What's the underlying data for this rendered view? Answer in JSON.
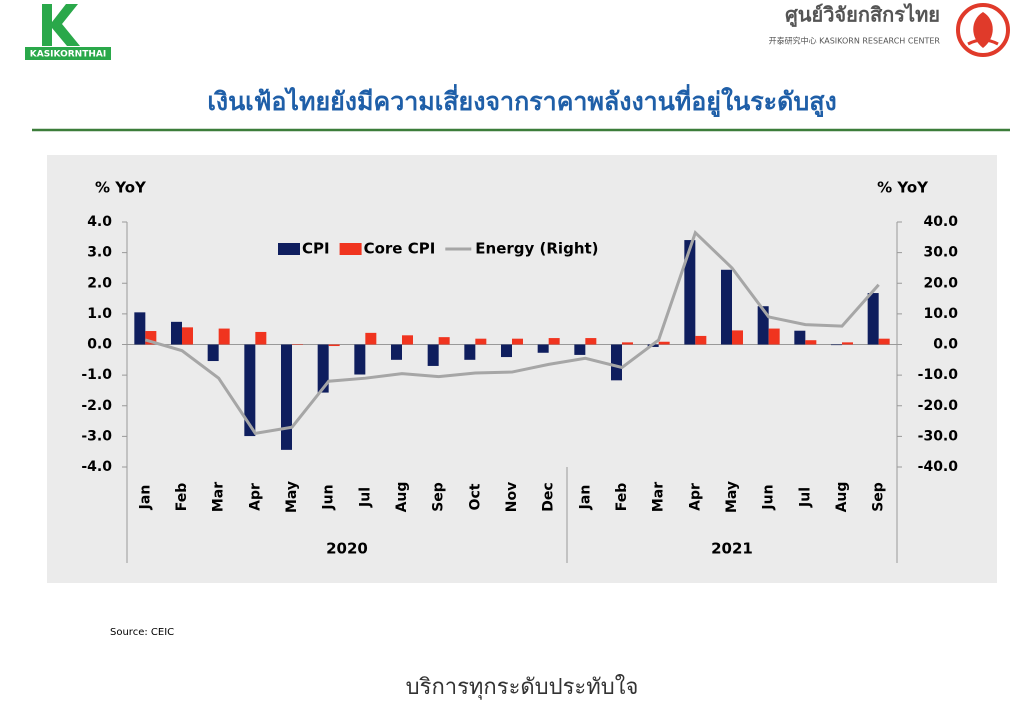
{
  "header": {
    "logo_text": "KASIKORNTHAI",
    "center_name": "ศูนย์วิจัยกสิกรไทย",
    "center_subtitle": "开泰研究中心 KASIKORN RESEARCH CENTER",
    "title": "เงินเฟ้อไทยยังมีความเสี่ยงจากราคาพลังงานที่อยู่ในระดับสูง"
  },
  "chart_data": {
    "type": "bar-line",
    "y_label": "% YoY",
    "y2_label": "% YoY",
    "categories": [
      "Jan",
      "Feb",
      "Mar",
      "Apr",
      "May",
      "Jun",
      "Jul",
      "Aug",
      "Sep",
      "Oct",
      "Nov",
      "Dec",
      "Jan",
      "Feb",
      "Mar",
      "Apr",
      "May",
      "Jun",
      "Jul",
      "Aug",
      "Sep"
    ],
    "groups": [
      {
        "label": "2020",
        "size": 12
      },
      {
        "label": "2021",
        "size": 9
      }
    ],
    "series": [
      {
        "name": "CPI",
        "color": "#0f1e5e",
        "kind": "bar",
        "values": [
          1.05,
          0.74,
          -0.54,
          -2.99,
          -3.44,
          -1.57,
          -0.98,
          -0.5,
          -0.7,
          -0.5,
          -0.41,
          -0.27,
          -0.34,
          -1.17,
          -0.08,
          3.41,
          2.44,
          1.25,
          0.45,
          -0.02,
          1.68
        ]
      },
      {
        "name": "Core CPI",
        "color": "#f0341f",
        "kind": "bar",
        "values": [
          0.44,
          0.56,
          0.52,
          0.41,
          0.01,
          -0.05,
          0.38,
          0.3,
          0.24,
          0.19,
          0.19,
          0.21,
          0.21,
          0.07,
          0.09,
          0.28,
          0.46,
          0.52,
          0.14,
          0.07,
          0.19
        ]
      },
      {
        "name": "Energy (Right)",
        "color": "#a6a6a6",
        "kind": "line",
        "axis": "y2",
        "values": [
          1.5,
          -2,
          -11,
          -29,
          -27,
          -12,
          -11,
          -9.5,
          -10.5,
          -9.3,
          -9,
          -6.5,
          -4.5,
          -7.5,
          1.5,
          36.5,
          25,
          9,
          6.5,
          6,
          19.5
        ]
      }
    ],
    "ylim": [
      -4,
      4
    ],
    "yticks": [
      {
        "value": -4,
        "label": "-4.0"
      },
      {
        "value": -3,
        "label": "-3.0"
      },
      {
        "value": -2,
        "label": "-2.0"
      },
      {
        "value": -1,
        "label": "-1.0"
      },
      {
        "value": 0,
        "label": "0.0"
      },
      {
        "value": 1,
        "label": "1.0"
      },
      {
        "value": 2,
        "label": "2.0"
      },
      {
        "value": 3,
        "label": "3.0"
      },
      {
        "value": 4,
        "label": "4.0"
      }
    ],
    "y2lim": [
      -40,
      40
    ],
    "y2ticks": [
      {
        "value": -40,
        "label": "-40.0"
      },
      {
        "value": -30,
        "label": "-30.0"
      },
      {
        "value": -20,
        "label": "-20.0"
      },
      {
        "value": -10,
        "label": "-10.0"
      },
      {
        "value": 0,
        "label": "0.0"
      },
      {
        "value": 10,
        "label": "10.0"
      },
      {
        "value": 20,
        "label": "20.0"
      },
      {
        "value": 30,
        "label": "30.0"
      },
      {
        "value": 40,
        "label": "40.0"
      }
    ],
    "legend": "top",
    "grid": false
  },
  "source": "Source: CEIC",
  "footer": "บริการทุกระดับประทับใจ"
}
